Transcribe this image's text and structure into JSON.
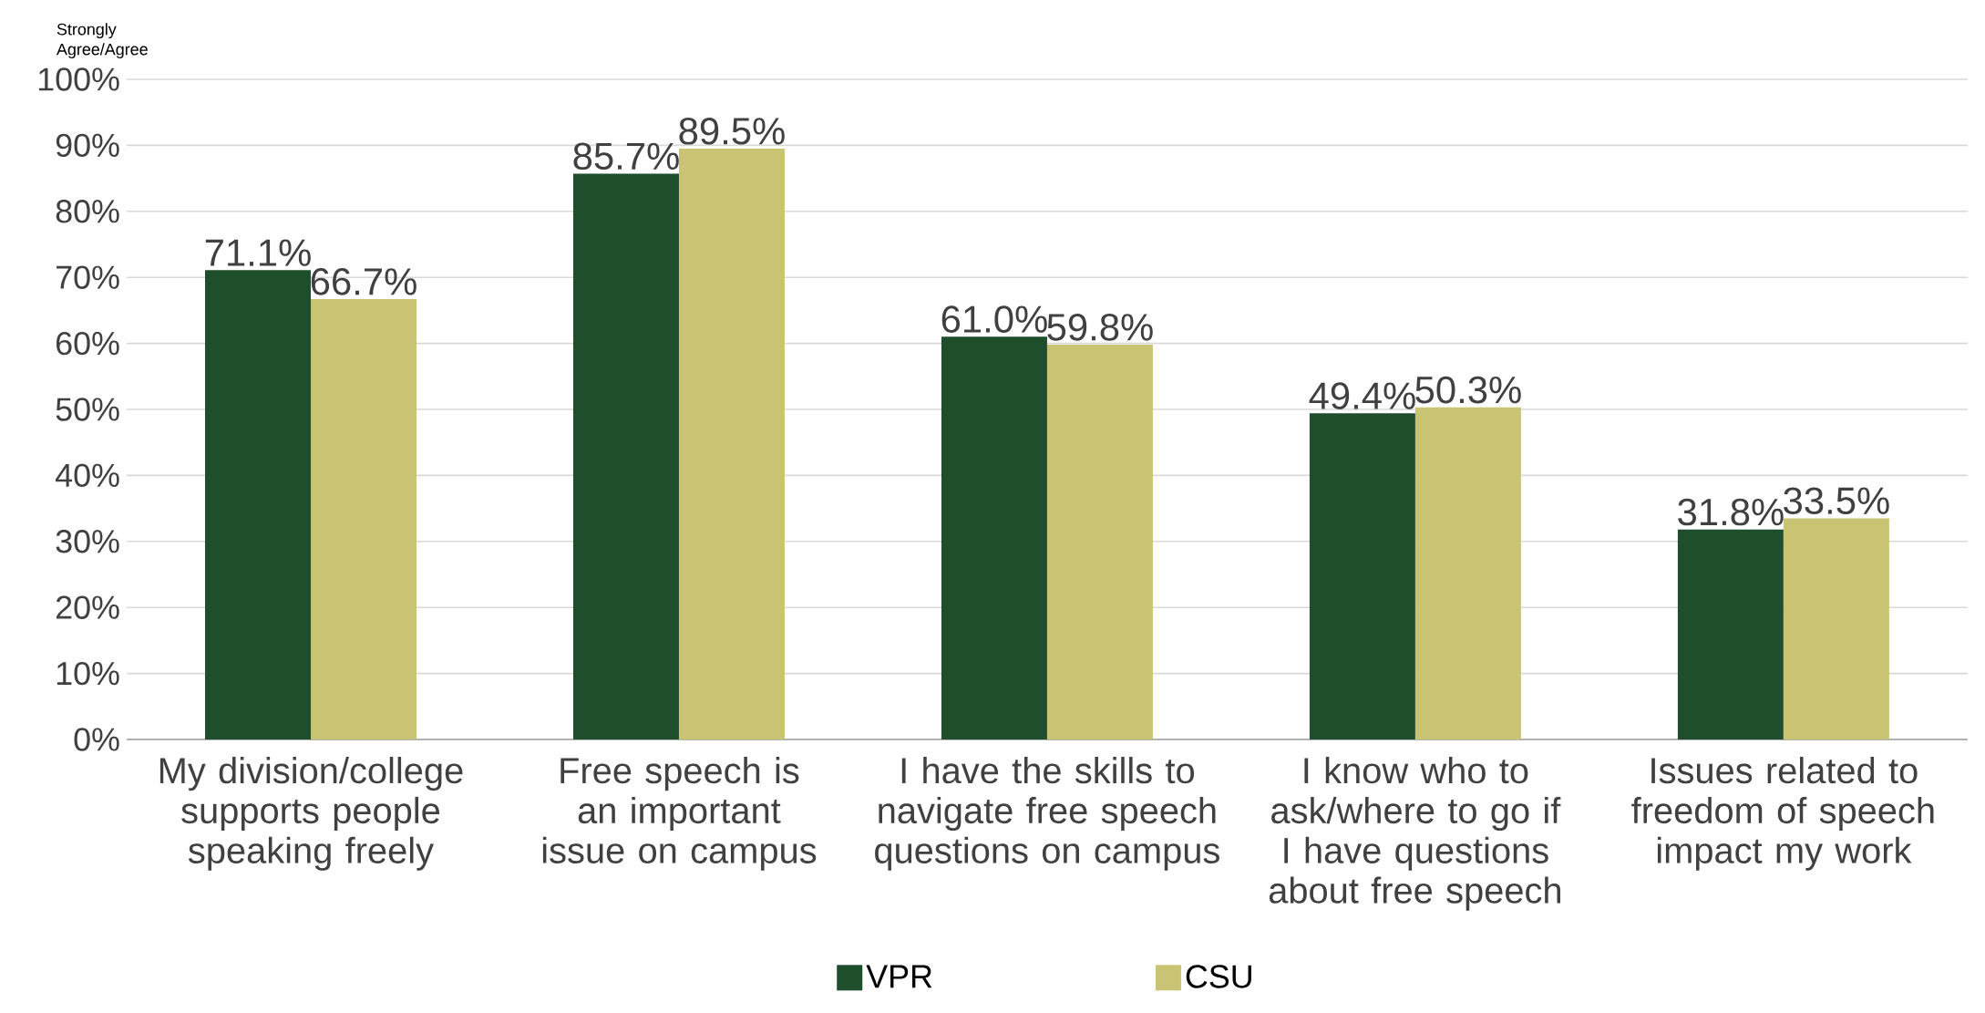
{
  "chart_data": {
    "type": "bar",
    "ylabel": "Strongly Agree/Agree",
    "categories": [
      "My division/college supports people speaking freely",
      "Free speech is an important issue on campus",
      "I have the skills to navigate free speech questions on campus",
      "I know who to ask/where to go if I have questions about free speech",
      "Issues related to freedom of speech impact my work"
    ],
    "series": [
      {
        "name": "VPR",
        "color": "#1f4e2c",
        "values": [
          71.1,
          85.7,
          61.0,
          49.4,
          31.8
        ],
        "value_labels": [
          "71.1%",
          "85.7%",
          "61.0%",
          "49.4%",
          "31.8%"
        ]
      },
      {
        "name": "CSU",
        "color": "#c8c474",
        "values": [
          66.7,
          89.5,
          59.8,
          50.3,
          33.5
        ],
        "value_labels": [
          "66.7%",
          "89.5%",
          "59.8%",
          "50.3%",
          "33.5%"
        ]
      }
    ],
    "ylim": [
      0,
      100
    ],
    "yticks": [
      {
        "value": 0,
        "label": "0%"
      },
      {
        "value": 10,
        "label": "10%"
      },
      {
        "value": 20,
        "label": "20%"
      },
      {
        "value": 30,
        "label": "30%"
      },
      {
        "value": 40,
        "label": "40%"
      },
      {
        "value": 50,
        "label": "50%"
      },
      {
        "value": 60,
        "label": "60%"
      },
      {
        "value": 70,
        "label": "70%"
      },
      {
        "value": 80,
        "label": "80%"
      },
      {
        "value": 90,
        "label": "90%"
      },
      {
        "value": 100,
        "label": "100%"
      }
    ],
    "grid": "y",
    "legend": "bottom"
  }
}
